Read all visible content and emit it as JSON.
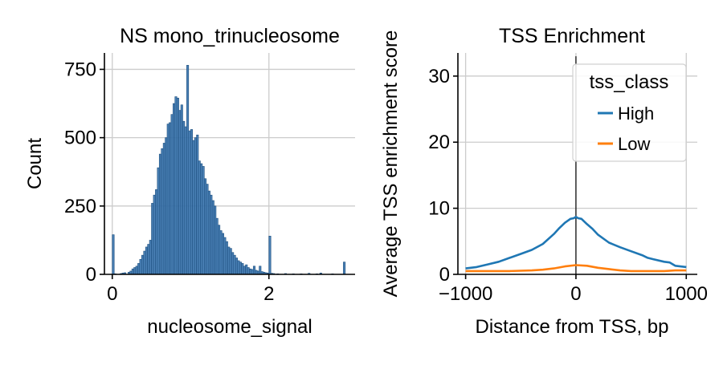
{
  "chart_data": [
    {
      "type": "bar",
      "title": "NS mono_trinucleosome",
      "xlabel": "nucleosome_signal",
      "ylabel": "Count",
      "xlim": [
        -0.1,
        3.1
      ],
      "ylim": [
        0,
        810
      ],
      "xticks": [
        0,
        2
      ],
      "yticks": [
        0,
        250,
        500,
        750
      ],
      "grid": true,
      "bar_color": "#3b75af",
      "bin_width": 0.025,
      "bins": [
        {
          "x": 0.0,
          "count": 145
        },
        {
          "x": 0.025,
          "count": 2
        },
        {
          "x": 0.1,
          "count": 3
        },
        {
          "x": 0.125,
          "count": 5
        },
        {
          "x": 0.15,
          "count": 6
        },
        {
          "x": 0.2,
          "count": 8
        },
        {
          "x": 0.225,
          "count": 12
        },
        {
          "x": 0.25,
          "count": 20
        },
        {
          "x": 0.275,
          "count": 25
        },
        {
          "x": 0.3,
          "count": 30
        },
        {
          "x": 0.325,
          "count": 40
        },
        {
          "x": 0.35,
          "count": 55
        },
        {
          "x": 0.375,
          "count": 70
        },
        {
          "x": 0.4,
          "count": 85
        },
        {
          "x": 0.425,
          "count": 100
        },
        {
          "x": 0.45,
          "count": 110
        },
        {
          "x": 0.475,
          "count": 125
        },
        {
          "x": 0.5,
          "count": 260
        },
        {
          "x": 0.525,
          "count": 290
        },
        {
          "x": 0.55,
          "count": 310
        },
        {
          "x": 0.575,
          "count": 390
        },
        {
          "x": 0.6,
          "count": 440
        },
        {
          "x": 0.625,
          "count": 460
        },
        {
          "x": 0.65,
          "count": 480
        },
        {
          "x": 0.675,
          "count": 500
        },
        {
          "x": 0.7,
          "count": 550
        },
        {
          "x": 0.725,
          "count": 555
        },
        {
          "x": 0.75,
          "count": 585
        },
        {
          "x": 0.775,
          "count": 625
        },
        {
          "x": 0.8,
          "count": 650
        },
        {
          "x": 0.825,
          "count": 645
        },
        {
          "x": 0.85,
          "count": 600
        },
        {
          "x": 0.875,
          "count": 620
        },
        {
          "x": 0.9,
          "count": 560
        },
        {
          "x": 0.925,
          "count": 540
        },
        {
          "x": 0.95,
          "count": 765
        },
        {
          "x": 0.975,
          "count": 525
        },
        {
          "x": 1.0,
          "count": 530
        },
        {
          "x": 1.025,
          "count": 490
        },
        {
          "x": 1.05,
          "count": 500
        },
        {
          "x": 1.075,
          "count": 510
        },
        {
          "x": 1.1,
          "count": 415
        },
        {
          "x": 1.125,
          "count": 405
        },
        {
          "x": 1.15,
          "count": 395
        },
        {
          "x": 1.175,
          "count": 350
        },
        {
          "x": 1.2,
          "count": 330
        },
        {
          "x": 1.225,
          "count": 305
        },
        {
          "x": 1.25,
          "count": 290
        },
        {
          "x": 1.275,
          "count": 270
        },
        {
          "x": 1.3,
          "count": 250
        },
        {
          "x": 1.325,
          "count": 205
        },
        {
          "x": 1.35,
          "count": 180
        },
        {
          "x": 1.375,
          "count": 160
        },
        {
          "x": 1.4,
          "count": 150
        },
        {
          "x": 1.425,
          "count": 135
        },
        {
          "x": 1.45,
          "count": 120
        },
        {
          "x": 1.475,
          "count": 100
        },
        {
          "x": 1.5,
          "count": 95
        },
        {
          "x": 1.525,
          "count": 80
        },
        {
          "x": 1.55,
          "count": 70
        },
        {
          "x": 1.575,
          "count": 60
        },
        {
          "x": 1.6,
          "count": 50
        },
        {
          "x": 1.625,
          "count": 45
        },
        {
          "x": 1.65,
          "count": 40
        },
        {
          "x": 1.675,
          "count": 30
        },
        {
          "x": 1.7,
          "count": 35
        },
        {
          "x": 1.725,
          "count": 25
        },
        {
          "x": 1.75,
          "count": 20
        },
        {
          "x": 1.775,
          "count": 18
        },
        {
          "x": 1.8,
          "count": 30
        },
        {
          "x": 1.825,
          "count": 15
        },
        {
          "x": 1.85,
          "count": 12
        },
        {
          "x": 1.875,
          "count": 30
        },
        {
          "x": 1.9,
          "count": 10
        },
        {
          "x": 1.925,
          "count": 8
        },
        {
          "x": 1.95,
          "count": 6
        },
        {
          "x": 1.975,
          "count": 5
        },
        {
          "x": 2.0,
          "count": 140
        },
        {
          "x": 2.025,
          "count": 4
        },
        {
          "x": 2.05,
          "count": 3
        },
        {
          "x": 2.1,
          "count": 2
        },
        {
          "x": 2.2,
          "count": 3
        },
        {
          "x": 2.3,
          "count": 2
        },
        {
          "x": 2.4,
          "count": 2
        },
        {
          "x": 2.5,
          "count": 4
        },
        {
          "x": 2.6,
          "count": 2
        },
        {
          "x": 2.65,
          "count": 5
        },
        {
          "x": 2.8,
          "count": 2
        },
        {
          "x": 2.95,
          "count": 45
        }
      ]
    },
    {
      "type": "line",
      "title": "TSS Enrichment",
      "xlabel": "Distance from TSS, bp",
      "ylabel": "Average TSS enrichment score",
      "xlim": [
        -1070,
        1100
      ],
      "ylim": [
        0,
        33.5
      ],
      "xticks": [
        -1000,
        0,
        1000
      ],
      "xtick_labels": [
        "−1000",
        "0",
        "1000"
      ],
      "yticks": [
        0,
        10,
        20,
        30
      ],
      "grid": true,
      "legend_title": "tss_class",
      "legend_position": "top-right",
      "vline": {
        "x": 0,
        "ymin": 0,
        "ymax": 33
      },
      "series": [
        {
          "name": "High",
          "color": "#1f77b4",
          "x": [
            -1000,
            -900,
            -800,
            -700,
            -600,
            -500,
            -400,
            -300,
            -200,
            -150,
            -100,
            -50,
            -20,
            0,
            20,
            50,
            100,
            150,
            200,
            300,
            400,
            500,
            600,
            650,
            700,
            800,
            850,
            900,
            1000
          ],
          "y": [
            0.9,
            1.1,
            1.5,
            1.9,
            2.5,
            3.1,
            3.7,
            4.6,
            6.1,
            7.0,
            7.8,
            8.4,
            8.5,
            8.7,
            8.5,
            8.4,
            7.6,
            6.9,
            6.0,
            4.8,
            4.1,
            3.5,
            2.9,
            2.5,
            2.3,
            1.9,
            1.8,
            1.3,
            1.1
          ]
        },
        {
          "name": "Low",
          "color": "#ff7f0e",
          "x": [
            -1000,
            -800,
            -600,
            -400,
            -300,
            -200,
            -100,
            0,
            100,
            200,
            300,
            400,
            500,
            600,
            700,
            800,
            900,
            1000
          ],
          "y": [
            0.5,
            0.5,
            0.5,
            0.6,
            0.7,
            0.9,
            1.2,
            1.4,
            1.3,
            1.0,
            0.8,
            0.6,
            0.5,
            0.5,
            0.5,
            0.5,
            0.6,
            0.6
          ]
        }
      ]
    }
  ]
}
